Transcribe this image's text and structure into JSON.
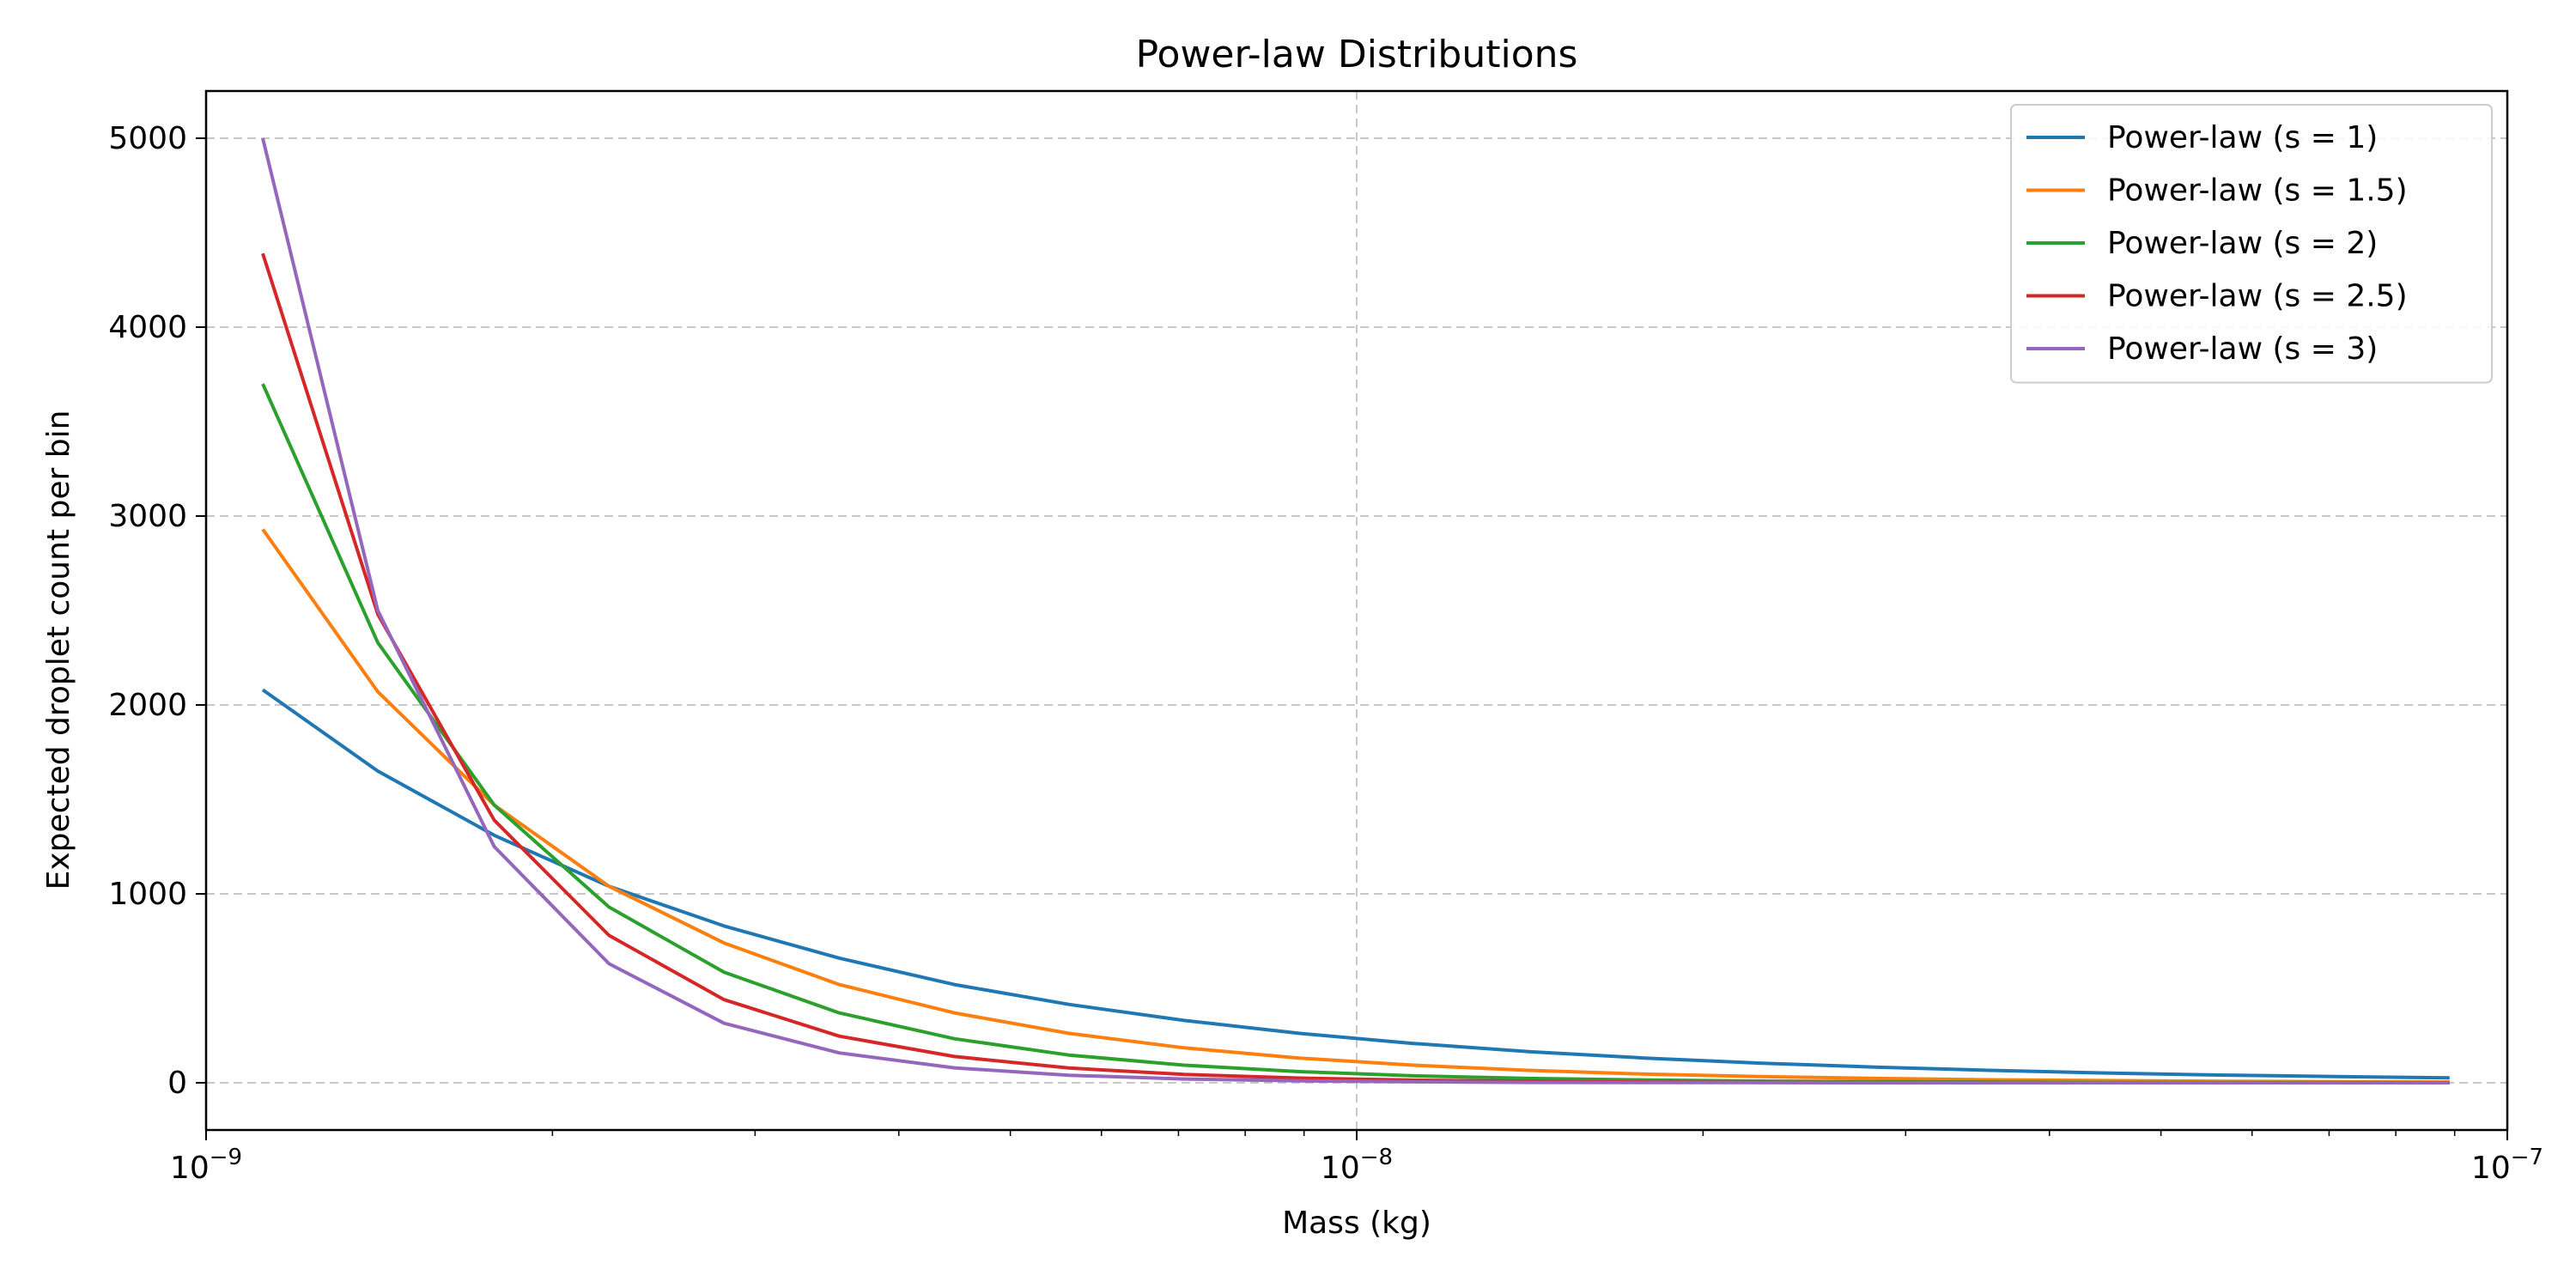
{
  "chart_data": {
    "type": "line",
    "title": "Power-law Distributions",
    "xlabel": "Mass (kg)",
    "ylabel": "Expected droplet count per bin",
    "x_scale": "log",
    "xlim": [
      1e-09,
      1e-07
    ],
    "ylim": [
      -250,
      5250
    ],
    "grid": true,
    "legend_position": "top-right",
    "x_ticks": [
      {
        "value": 1e-09,
        "base": "10",
        "exp": "−9"
      },
      {
        "value": 1e-08,
        "base": "10",
        "exp": "−8"
      },
      {
        "value": 1e-07,
        "base": "10",
        "exp": "−7"
      }
    ],
    "y_ticks": [
      {
        "value": 0,
        "label": "0"
      },
      {
        "value": 1000,
        "label": "1000"
      },
      {
        "value": 2000,
        "label": "2000"
      },
      {
        "value": 3000,
        "label": "3000"
      },
      {
        "value": 4000,
        "label": "4000"
      },
      {
        "value": 5000,
        "label": "5000"
      }
    ],
    "x": [
      1.12e-09,
      1.41e-09,
      1.78e-09,
      2.24e-09,
      2.82e-09,
      3.55e-09,
      4.47e-09,
      5.62e-09,
      7.08e-09,
      8.91e-09,
      1.12e-08,
      1.41e-08,
      1.78e-08,
      2.24e-08,
      2.82e-08,
      3.55e-08,
      4.47e-08,
      5.62e-08,
      7.08e-08,
      8.91e-08
    ],
    "series": [
      {
        "name": "Power-law (s = 1)",
        "color": "#1f77b4",
        "values": [
          2080,
          1650,
          1310,
          1040,
          830,
          660,
          520,
          415,
          330,
          262,
          208,
          165,
          131,
          104,
          83,
          66,
          52,
          41,
          33,
          26
        ]
      },
      {
        "name": "Power-law (s = 1.5)",
        "color": "#ff7f0e",
        "values": [
          2930,
          2070,
          1470,
          1040,
          740,
          520,
          370,
          262,
          185,
          131,
          93,
          66,
          46,
          33,
          23,
          16,
          12,
          8,
          6,
          4
        ]
      },
      {
        "name": "Power-law (s = 2)",
        "color": "#2ca02c",
        "values": [
          3700,
          2330,
          1470,
          930,
          585,
          370,
          233,
          147,
          93,
          59,
          37,
          23,
          15,
          9,
          6,
          4,
          2,
          1,
          1,
          0
        ]
      },
      {
        "name": "Power-law (s = 2.5)",
        "color": "#d62728",
        "values": [
          4390,
          2480,
          1390,
          780,
          440,
          247,
          139,
          78,
          44,
          25,
          14,
          8,
          4,
          2,
          1,
          1,
          0,
          0,
          0,
          0
        ]
      },
      {
        "name": "Power-law (s = 3)",
        "color": "#9467bd",
        "values": [
          5000,
          2500,
          1250,
          630,
          315,
          158,
          79,
          40,
          20,
          10,
          5,
          2,
          1,
          1,
          0,
          0,
          0,
          0,
          0,
          0
        ]
      }
    ]
  }
}
